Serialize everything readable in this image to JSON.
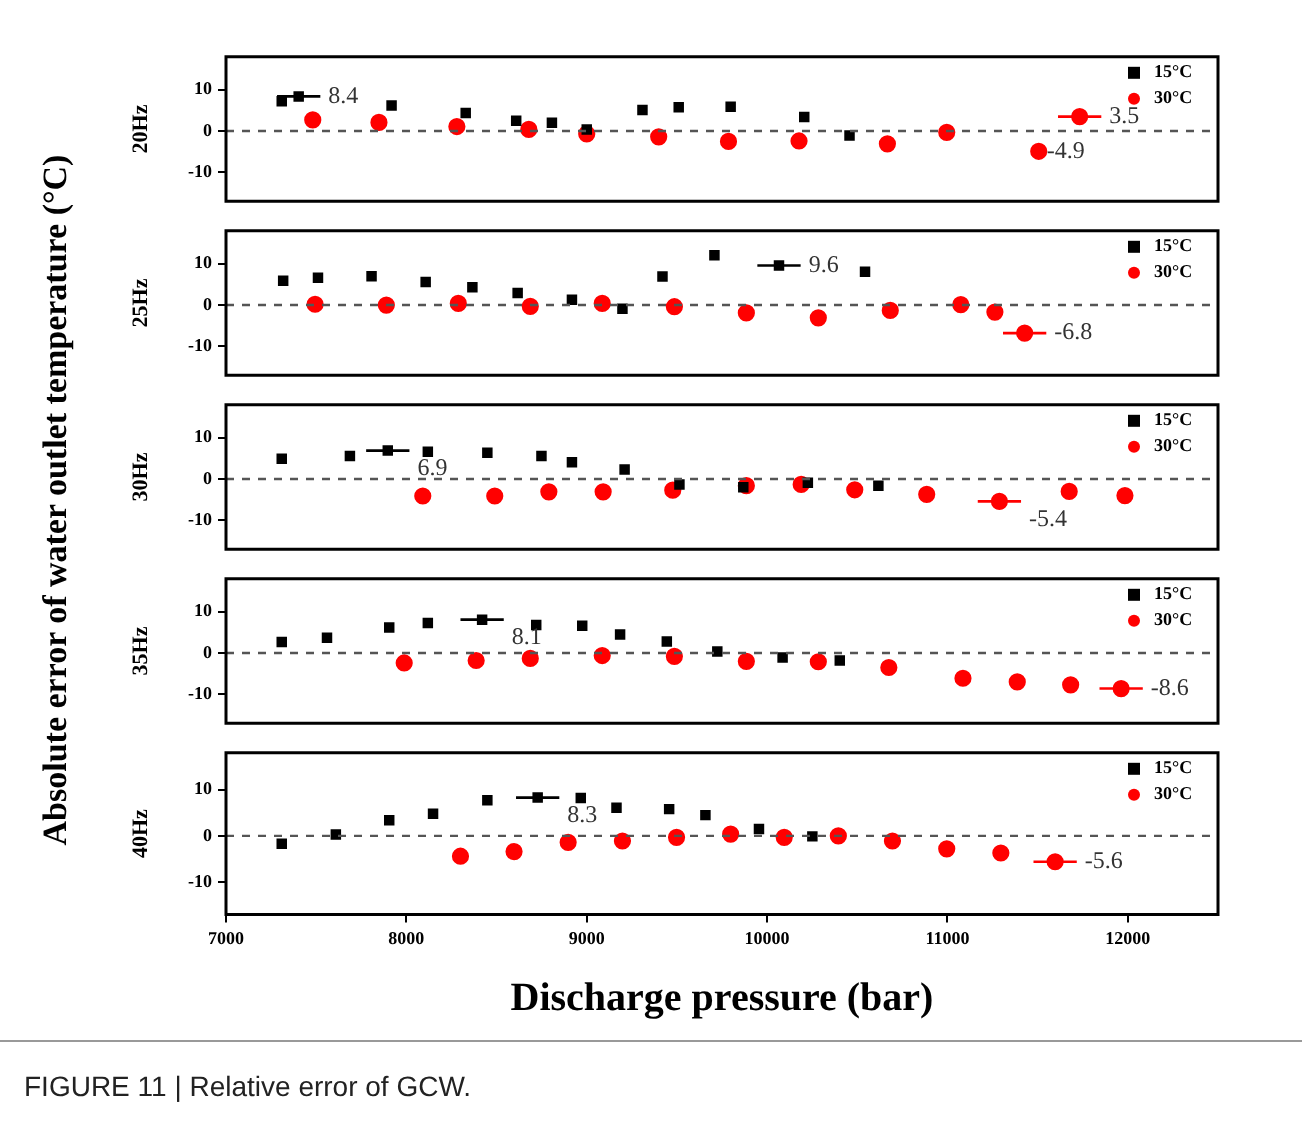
{
  "chart_data": [
    {
      "type": "scatter",
      "ylabel": "20Hz",
      "annotations": [
        "Absolute error of water outlet temperature (°C)"
      ],
      "xlim": [
        7000,
        12500
      ],
      "xticks": [
        7000,
        8000,
        9000,
        10000,
        11000,
        12000
      ],
      "ylim": [
        -17,
        18
      ],
      "yticks": [
        -10,
        0,
        10
      ],
      "tick_labels": "y",
      "grid": false,
      "legend": "top right",
      "ref_lines": [
        {
          "axis": "y",
          "value": 0,
          "line_style": "dashed",
          "color": "#555555"
        }
      ],
      "series": [
        {
          "name": "15°C",
          "color": "#000000",
          "marker": "square",
          "x": [
            7309,
            7403,
            7918,
            8329,
            8609,
            8807,
            9000,
            9309,
            9510,
            9798,
            10206,
            10457
          ],
          "values": [
            7.2,
            8.4,
            6.2,
            4.4,
            2.5,
            2.0,
            0.4,
            5.1,
            5.8,
            5.9,
            3.4,
            -1.1
          ],
          "xerrors": [
            null,
            120,
            null,
            null,
            null,
            null,
            null,
            null,
            null,
            null,
            null,
            null
          ],
          "value_labels": [
            null,
            "8.4",
            null,
            null,
            null,
            null,
            null,
            null,
            null,
            null,
            null,
            null
          ]
        },
        {
          "name": "30°C",
          "color": "#ff0000",
          "marker": "circle",
          "x": [
            7481,
            7848,
            8280,
            8679,
            9000,
            9399,
            9786,
            10177,
            10667,
            10996,
            11506,
            11733
          ],
          "values": [
            2.7,
            2.1,
            1.1,
            0.4,
            -0.7,
            -1.4,
            -2.5,
            -2.4,
            -3.1,
            -0.3,
            -4.9,
            3.5
          ],
          "xerrors": [
            null,
            null,
            null,
            null,
            null,
            null,
            null,
            null,
            null,
            null,
            null,
            120
          ],
          "value_labels": [
            null,
            null,
            null,
            null,
            null,
            null,
            null,
            null,
            null,
            null,
            "-4.9",
            "3.5"
          ]
        }
      ]
    },
    {
      "type": "scatter",
      "ylabel": "25Hz",
      "xlim": [
        7000,
        12500
      ],
      "xticks": [
        7000,
        8000,
        9000,
        10000,
        11000,
        12000
      ],
      "ylim": [
        -17,
        18
      ],
      "yticks": [
        -10,
        0,
        10
      ],
      "tick_labels": "y",
      "grid": false,
      "legend": "top right",
      "ref_lines": [
        {
          "axis": "y",
          "value": 0,
          "line_style": "dashed",
          "color": "#555555"
        }
      ],
      "series": [
        {
          "name": "15°C",
          "color": "#000000",
          "marker": "square",
          "x": [
            7317,
            7510,
            7807,
            8107,
            8366,
            8617,
            8918,
            9198,
            9420,
            9708,
            10066,
            10543
          ],
          "values": [
            5.9,
            6.6,
            7.0,
            5.6,
            4.3,
            2.9,
            1.3,
            -0.9,
            6.9,
            12.1,
            9.6,
            8.1
          ],
          "xerrors": [
            null,
            null,
            null,
            null,
            null,
            null,
            null,
            null,
            null,
            null,
            120,
            null
          ],
          "value_labels": [
            null,
            null,
            null,
            null,
            null,
            null,
            null,
            null,
            null,
            null,
            "9.6",
            null
          ]
        },
        {
          "name": "30°C",
          "color": "#ff0000",
          "marker": "circle",
          "x": [
            7494,
            7889,
            8288,
            8687,
            9086,
            9486,
            9885,
            10284,
            10683,
            11074,
            11263,
            11428
          ],
          "values": [
            0.2,
            0,
            0.4,
            -0.3,
            0.4,
            -0.4,
            -1.9,
            -3.1,
            -1.3,
            0.1,
            -1.7,
            -6.8
          ],
          "xerrors": [
            null,
            null,
            null,
            null,
            null,
            null,
            null,
            null,
            null,
            null,
            null,
            120
          ],
          "value_labels": [
            null,
            null,
            null,
            null,
            null,
            null,
            null,
            null,
            null,
            null,
            null,
            "-6.8"
          ]
        }
      ]
    },
    {
      "type": "scatter",
      "ylabel": "30Hz",
      "xlim": [
        7000,
        12500
      ],
      "xticks": [
        7000,
        8000,
        9000,
        10000,
        11000,
        12000
      ],
      "ylim": [
        -17,
        18
      ],
      "yticks": [
        -10,
        0,
        10
      ],
      "tick_labels": "y",
      "grid": false,
      "legend": "top right",
      "ref_lines": [
        {
          "axis": "y",
          "value": 0,
          "line_style": "dashed",
          "color": "#555555"
        }
      ],
      "series": [
        {
          "name": "15°C",
          "color": "#000000",
          "marker": "square",
          "x": [
            7309,
            7687,
            7897,
            8119,
            8449,
            8749,
            8918,
            9210,
            9514,
            9868,
            10226,
            10617
          ],
          "values": [
            4.9,
            5.6,
            6.9,
            6.6,
            6.4,
            5.6,
            4.1,
            2.3,
            -1.3,
            -2.0,
            -0.9,
            -1.6
          ],
          "xerrors": [
            null,
            null,
            120,
            null,
            null,
            null,
            null,
            null,
            null,
            null,
            null,
            null
          ],
          "value_labels": [
            null,
            null,
            "6.9",
            null,
            null,
            null,
            null,
            null,
            null,
            null,
            null,
            null
          ]
        },
        {
          "name": "30°C",
          "color": "#ff0000",
          "marker": "circle",
          "x": [
            8091,
            8490,
            8790,
            9091,
            9477,
            9885,
            10189,
            10486,
            10885,
            11288,
            11675,
            11984
          ],
          "values": [
            -4.1,
            -4.1,
            -3.1,
            -3.1,
            -2.7,
            -1.6,
            -1.3,
            -2.6,
            -3.7,
            -5.4,
            -3.0,
            -4.0
          ],
          "xerrors": [
            null,
            null,
            null,
            null,
            null,
            null,
            null,
            null,
            null,
            120,
            null,
            null
          ],
          "value_labels": [
            null,
            null,
            null,
            null,
            null,
            null,
            null,
            null,
            null,
            "-5.4",
            null,
            null
          ]
        }
      ]
    },
    {
      "type": "scatter",
      "ylabel": "35Hz",
      "xlim": [
        7000,
        12500
      ],
      "xticks": [
        7000,
        8000,
        9000,
        10000,
        11000,
        12000
      ],
      "ylim": [
        -17,
        18
      ],
      "yticks": [
        -10,
        0,
        10
      ],
      "tick_labels": "y",
      "grid": false,
      "legend": "top right",
      "ref_lines": [
        {
          "axis": "y",
          "value": 0,
          "line_style": "dashed",
          "color": "#555555"
        }
      ],
      "series": [
        {
          "name": "15°C",
          "color": "#000000",
          "marker": "square",
          "x": [
            7309,
            7560,
            7905,
            8119,
            8420,
            8720,
            8975,
            9185,
            9444,
            9724,
            10086,
            10403
          ],
          "values": [
            2.7,
            3.7,
            6.2,
            7.3,
            8.1,
            6.8,
            6.6,
            4.5,
            2.8,
            0.4,
            -1.1,
            -1.8
          ],
          "xerrors": [
            null,
            null,
            null,
            null,
            120,
            null,
            null,
            null,
            null,
            null,
            null,
            null
          ],
          "value_labels": [
            null,
            null,
            null,
            null,
            "8.1",
            null,
            null,
            null,
            null,
            null,
            null,
            null
          ]
        },
        {
          "name": "30°C",
          "color": "#ff0000",
          "marker": "circle",
          "x": [
            7988,
            8387,
            8687,
            9086,
            9486,
            9885,
            10284,
            10675,
            11086,
            11387,
            11683,
            11963
          ],
          "values": [
            -2.4,
            -1.8,
            -1.3,
            -0.6,
            -0.8,
            -2.0,
            -2.1,
            -3.5,
            -6.1,
            -7.0,
            -7.7,
            -8.6
          ],
          "xerrors": [
            null,
            null,
            null,
            null,
            null,
            null,
            null,
            null,
            null,
            null,
            null,
            120
          ],
          "value_labels": [
            null,
            null,
            null,
            null,
            null,
            null,
            null,
            null,
            null,
            null,
            null,
            "-8.6"
          ]
        }
      ]
    },
    {
      "type": "scatter",
      "ylabel": "40Hz",
      "xlabel": "Discharge pressure (bar)",
      "annotations": [
        "FIGURE 11 | Relative error of GCW."
      ],
      "xlim": [
        7000,
        12500
      ],
      "xticks": [
        7000,
        8000,
        9000,
        10000,
        11000,
        12000
      ],
      "ylim": [
        -17,
        18
      ],
      "yticks": [
        -10,
        0,
        10
      ],
      "grid": false,
      "legend": "top right",
      "ref_lines": [
        {
          "axis": "y",
          "value": 0,
          "line_style": "dashed",
          "color": "#555555"
        }
      ],
      "series": [
        {
          "name": "15°C",
          "color": "#000000",
          "marker": "square",
          "x": [
            7309,
            7609,
            7905,
            8148,
            8449,
            8728,
            8967,
            9165,
            9457,
            9658,
            9955,
            10251
          ],
          "values": [
            -1.7,
            0.3,
            3.4,
            4.8,
            7.7,
            8.3,
            8.2,
            6.1,
            5.8,
            4.5,
            1.5,
            -0.1
          ],
          "xerrors": [
            null,
            null,
            null,
            null,
            null,
            120,
            null,
            null,
            null,
            null,
            null,
            null
          ],
          "value_labels": [
            null,
            null,
            null,
            null,
            null,
            "8.3",
            null,
            null,
            null,
            null,
            null,
            null
          ]
        },
        {
          "name": "30°C",
          "color": "#ff0000",
          "marker": "circle",
          "x": [
            8300,
            8597,
            8897,
            9198,
            9498,
            9798,
            10095,
            10395,
            10695,
            10996,
            11296,
            11597
          ],
          "values": [
            -4.4,
            -3.4,
            -1.4,
            -1.1,
            -0.3,
            0.4,
            -0.3,
            0,
            -1.1,
            -2.8,
            -3.7,
            -5.6
          ],
          "xerrors": [
            null,
            null,
            null,
            null,
            null,
            null,
            null,
            null,
            null,
            null,
            null,
            120
          ],
          "value_labels": [
            null,
            null,
            null,
            null,
            null,
            null,
            null,
            null,
            null,
            null,
            null,
            "-5.6"
          ]
        }
      ]
    }
  ]
}
